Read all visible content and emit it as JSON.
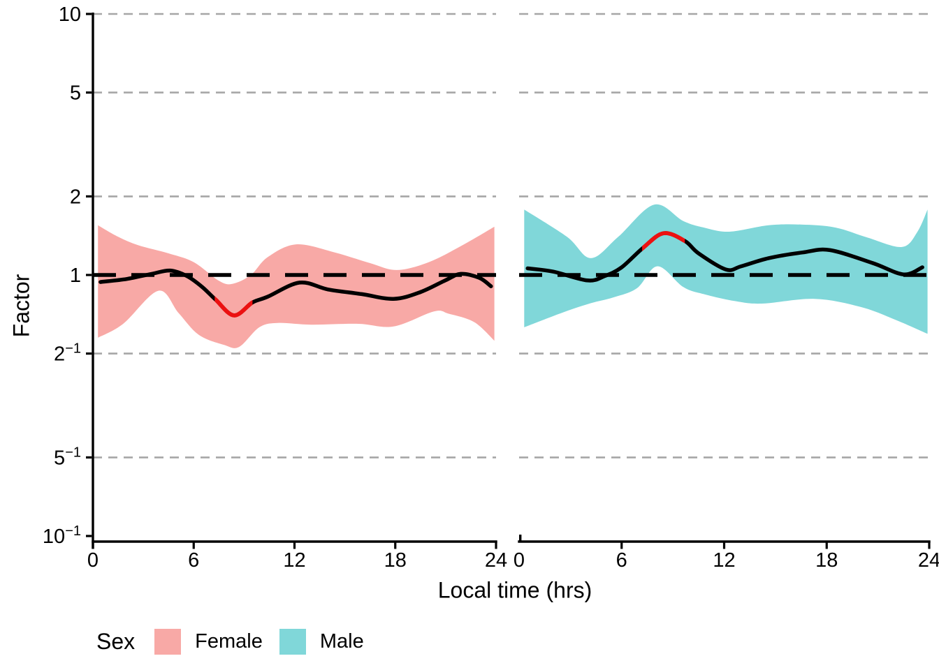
{
  "figure": {
    "ylabel": "Factor",
    "xlabel": "Local time (hrs)",
    "y_ticks": [
      {
        "base": "10",
        "sup": "",
        "v": 10
      },
      {
        "base": "5",
        "sup": "",
        "v": 5
      },
      {
        "base": "2",
        "sup": "",
        "v": 2
      },
      {
        "base": "1",
        "sup": "",
        "v": 1
      },
      {
        "base": "2",
        "sup": "−1",
        "v": 0.5
      },
      {
        "base": "5",
        "sup": "−1",
        "v": 0.2
      },
      {
        "base": "10",
        "sup": "−1",
        "v": 0.1
      }
    ],
    "x_ticks": [
      0,
      6,
      12,
      18,
      24
    ],
    "gridline_values": [
      10,
      5,
      2,
      0.5,
      0.2
    ],
    "reference_value": 1
  },
  "legend": {
    "title": "Sex",
    "items": [
      {
        "label": "Female",
        "color": "#F8A9A6"
      },
      {
        "label": "Male",
        "color": "#80D7D9"
      }
    ]
  },
  "colors": {
    "female_ribbon": "#F8A9A6",
    "male_ribbon": "#80D7D9",
    "curve": "#000000",
    "significant": "#EC1111",
    "gridline": "#A6A6A6",
    "reference": "#000000",
    "axis": "#000000"
  },
  "chart_data": {
    "type": "line",
    "subtype": "smooth curve with confidence ribbon, faceted by Sex, log10 y scale",
    "title": "",
    "xlabel": "Local time (hrs)",
    "ylabel": "Factor",
    "x_range": [
      0,
      24
    ],
    "x_ticks": [
      0,
      6,
      12,
      18,
      24
    ],
    "y_scale": "log10",
    "y_tick_values": [
      10,
      5,
      2,
      1,
      0.5,
      0.2,
      0.1
    ],
    "ylim": [
      0.095,
      10
    ],
    "grid": "dashed horizontal gridlines at y ticks",
    "reference_line": 1,
    "legend_position": "bottom",
    "panels": [
      {
        "facet": "Female",
        "ribbon_color": "#F8A9A6",
        "curve": [
          [
            0.45,
            0.94
          ],
          [
            2,
            0.965
          ],
          [
            3.5,
            1.01
          ],
          [
            4.6,
            1.04
          ],
          [
            5.6,
            0.99
          ],
          [
            6.5,
            0.9
          ],
          [
            7.3,
            0.805
          ],
          [
            8.4,
            0.7
          ],
          [
            9.5,
            0.785
          ],
          [
            10.4,
            0.825
          ],
          [
            12.3,
            0.935
          ],
          [
            14,
            0.88
          ],
          [
            16,
            0.845
          ],
          [
            17.9,
            0.81
          ],
          [
            19.5,
            0.86
          ],
          [
            21,
            0.955
          ],
          [
            21.9,
            1.01
          ],
          [
            23,
            0.975
          ],
          [
            23.7,
            0.905
          ]
        ],
        "ribbon_upper": [
          [
            0.3,
            1.55
          ],
          [
            1.5,
            1.4
          ],
          [
            2.7,
            1.3
          ],
          [
            4.5,
            1.21
          ],
          [
            6,
            1.12
          ],
          [
            7.5,
            0.95
          ],
          [
            8.3,
            0.925
          ],
          [
            9.4,
            1.0
          ],
          [
            10.4,
            1.17
          ],
          [
            12.1,
            1.31
          ],
          [
            14.4,
            1.22
          ],
          [
            16.5,
            1.11
          ],
          [
            18.1,
            1.045
          ],
          [
            20,
            1.12
          ],
          [
            22,
            1.3
          ],
          [
            23.9,
            1.53
          ]
        ],
        "ribbon_lower": [
          [
            0.3,
            0.575
          ],
          [
            1.8,
            0.65
          ],
          [
            3.9,
            0.87
          ],
          [
            5.1,
            0.715
          ],
          [
            6.3,
            0.59
          ],
          [
            7.8,
            0.54
          ],
          [
            8.7,
            0.53
          ],
          [
            9.9,
            0.63
          ],
          [
            11,
            0.655
          ],
          [
            13,
            0.645
          ],
          [
            15.8,
            0.65
          ],
          [
            17.9,
            0.635
          ],
          [
            20.3,
            0.725
          ],
          [
            21.2,
            0.71
          ],
          [
            22.7,
            0.66
          ],
          [
            23.9,
            0.56
          ]
        ],
        "significant_t": [
          7.25,
          9.5
        ],
        "significant_extreme": {
          "t": 8.4,
          "value": 0.7
        }
      },
      {
        "facet": "Male",
        "ribbon_color": "#80D7D9",
        "curve": [
          [
            0.5,
            1.06
          ],
          [
            2,
            1.03
          ],
          [
            4.0,
            0.953
          ],
          [
            5,
            0.99
          ],
          [
            6,
            1.07
          ],
          [
            7.25,
            1.27
          ],
          [
            8.45,
            1.445
          ],
          [
            9.7,
            1.35
          ],
          [
            10.5,
            1.21
          ],
          [
            12.1,
            1.05
          ],
          [
            13,
            1.08
          ],
          [
            14.6,
            1.16
          ],
          [
            16.6,
            1.22
          ],
          [
            18.2,
            1.245
          ],
          [
            20.7,
            1.11
          ],
          [
            22.5,
            1.005
          ],
          [
            23.6,
            1.07
          ]
        ],
        "ribbon_upper": [
          [
            0.3,
            1.78
          ],
          [
            2.8,
            1.4
          ],
          [
            4.2,
            1.16
          ],
          [
            5.8,
            1.4
          ],
          [
            7.9,
            1.86
          ],
          [
            9.6,
            1.61
          ],
          [
            10.8,
            1.52
          ],
          [
            12.3,
            1.465
          ],
          [
            14.6,
            1.55
          ],
          [
            16.5,
            1.56
          ],
          [
            18.5,
            1.52
          ],
          [
            20.4,
            1.39
          ],
          [
            22.4,
            1.28
          ],
          [
            23.3,
            1.46
          ],
          [
            23.9,
            1.78
          ]
        ],
        "ribbon_lower": [
          [
            0.3,
            0.63
          ],
          [
            2.6,
            0.72
          ],
          [
            4.2,
            0.78
          ],
          [
            5.5,
            0.82
          ],
          [
            6.9,
            0.89
          ],
          [
            8.1,
            1.08
          ],
          [
            9.6,
            0.9
          ],
          [
            10.8,
            0.845
          ],
          [
            12.6,
            0.795
          ],
          [
            14.2,
            0.777
          ],
          [
            17.3,
            0.81
          ],
          [
            20,
            0.754
          ],
          [
            22.1,
            0.67
          ],
          [
            23.9,
            0.595
          ]
        ],
        "significant_t": [
          7.2,
          9.7
        ],
        "significant_extreme": {
          "t": 8.45,
          "value": 1.445
        }
      }
    ]
  }
}
